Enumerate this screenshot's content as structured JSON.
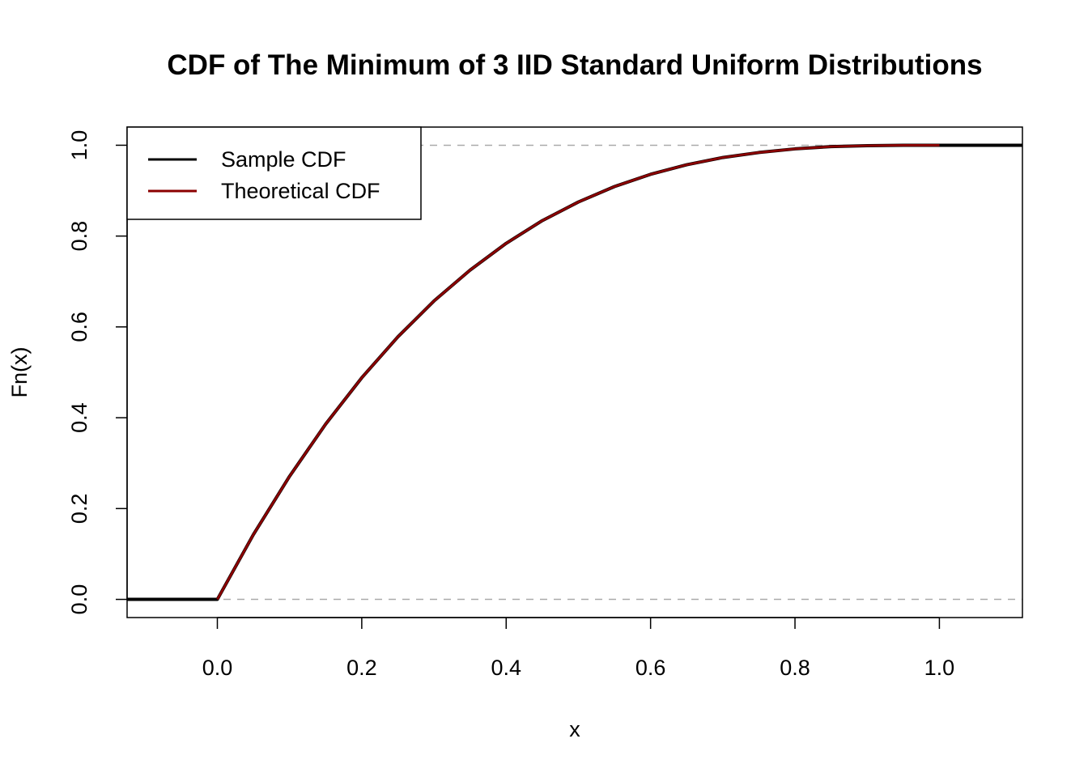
{
  "chart_data": {
    "type": "line",
    "title": "CDF of The Minimum of 3 IID Standard Uniform Distributions",
    "xlabel": "x",
    "ylabel": "Fn(x)",
    "xlim": [
      -0.125,
      1.115
    ],
    "ylim": [
      -0.04,
      1.04
    ],
    "x_ticks": [
      0.0,
      0.2,
      0.4,
      0.6,
      0.8,
      1.0
    ],
    "x_tick_labels": [
      "0.0",
      "0.2",
      "0.4",
      "0.6",
      "0.8",
      "1.0"
    ],
    "y_ticks": [
      0.0,
      0.2,
      0.4,
      0.6,
      0.8,
      1.0
    ],
    "y_tick_labels": [
      "0.0",
      "0.2",
      "0.4",
      "0.6",
      "0.8",
      "1.0"
    ],
    "reference_lines": [
      0,
      1
    ],
    "reference_line_color": "#aaaaaa",
    "grid": false,
    "legend_position": "top-left",
    "legend_box": "drawn",
    "series": [
      {
        "name": "Sample CDF",
        "color": "#000000",
        "x": [
          -0.125,
          0.0,
          0.05,
          0.1,
          0.15,
          0.2,
          0.25,
          0.3,
          0.35,
          0.4,
          0.45,
          0.5,
          0.55,
          0.6,
          0.65,
          0.7,
          0.75,
          0.8,
          0.85,
          0.9,
          0.95,
          1.0,
          1.115
        ],
        "y": [
          0,
          0,
          0.143,
          0.271,
          0.386,
          0.488,
          0.578,
          0.657,
          0.725,
          0.784,
          0.834,
          0.875,
          0.909,
          0.936,
          0.957,
          0.973,
          0.984,
          0.992,
          0.997,
          0.999,
          1.0,
          1.0,
          1.0
        ]
      },
      {
        "name": "Theoretical CDF",
        "color": "#8b0000",
        "x": [
          0.0,
          0.05,
          0.1,
          0.15,
          0.2,
          0.25,
          0.3,
          0.35,
          0.4,
          0.45,
          0.5,
          0.55,
          0.6,
          0.65,
          0.7,
          0.75,
          0.8,
          0.85,
          0.9,
          0.95,
          1.0
        ],
        "y": [
          0,
          0.143,
          0.271,
          0.386,
          0.488,
          0.578,
          0.657,
          0.725,
          0.784,
          0.834,
          0.875,
          0.909,
          0.936,
          0.957,
          0.973,
          0.984,
          0.992,
          0.997,
          0.999,
          1.0,
          1.0
        ]
      }
    ]
  }
}
